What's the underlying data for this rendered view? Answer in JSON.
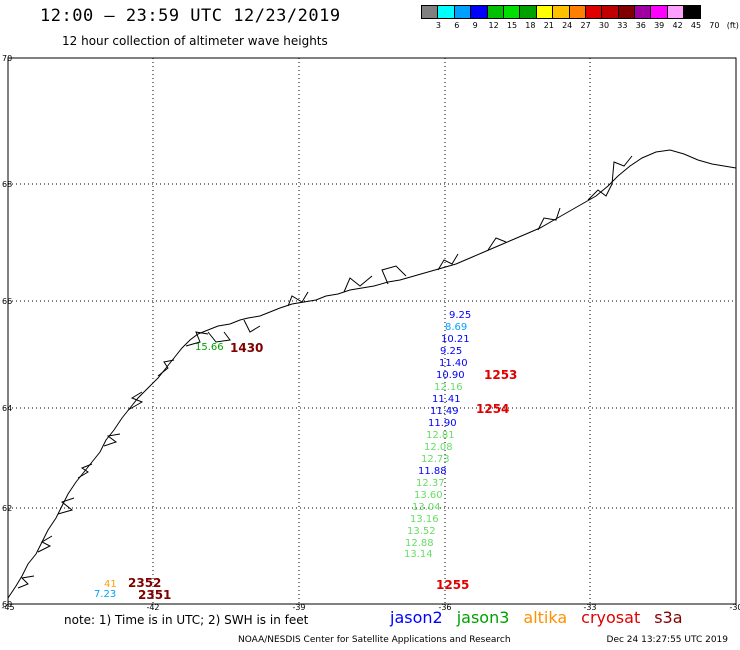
{
  "header": {
    "title": "12:00 – 23:59 UTC 12/23/2019",
    "subtitle": "12 hour collection of altimeter wave heights"
  },
  "colorbar": {
    "unit": "(ft)",
    "colors": [
      "#808080",
      "#00ffff",
      "#00a0ff",
      "#0000ff",
      "#00c000",
      "#00e000",
      "#00a000",
      "#ffff00",
      "#ffc000",
      "#ff8000",
      "#e00000",
      "#c00000",
      "#800000",
      "#a000a0",
      "#ff00ff",
      "#ffa0ff",
      "#000000"
    ],
    "labels": [
      "3",
      "6",
      "9",
      "12",
      "15",
      "18",
      "21",
      "24",
      "27",
      "30",
      "33",
      "36",
      "39",
      "42",
      "45",
      "70"
    ]
  },
  "map": {
    "lat_labels": [
      "70",
      "68",
      "66",
      "64",
      "62",
      "60"
    ],
    "lon_labels": [
      "-45",
      "-42",
      "-39",
      "-36",
      "-33",
      "-30"
    ]
  },
  "observations": {
    "time_labels": [
      {
        "text": "1253",
        "color": "#e00000"
      },
      {
        "text": "1254",
        "color": "#e00000"
      },
      {
        "text": "1255",
        "color": "#e00000"
      },
      {
        "text": "1430",
        "color": "#800000"
      },
      {
        "text": "2352",
        "color": "#800000"
      },
      {
        "text": "2351",
        "color": "#800000"
      }
    ],
    "track_values": [
      {
        "text": "9.25",
        "color": "#0000ff"
      },
      {
        "text": "8.69",
        "color": "#00a0ff"
      },
      {
        "text": "10.21",
        "color": "#0000ff"
      },
      {
        "text": "9.25",
        "color": "#0000ff"
      },
      {
        "text": "11.40",
        "color": "#0000ff"
      },
      {
        "text": "10.90",
        "color": "#0000ff"
      },
      {
        "text": "12.16",
        "color": "#66dd66"
      },
      {
        "text": "11.41",
        "color": "#0000ff"
      },
      {
        "text": "11.49",
        "color": "#0000ff"
      },
      {
        "text": "11.90",
        "color": "#0000ff"
      },
      {
        "text": "12.81",
        "color": "#66dd66"
      },
      {
        "text": "12.08",
        "color": "#66dd66"
      },
      {
        "text": "12.73",
        "color": "#66dd66"
      },
      {
        "text": "11.88",
        "color": "#0000ff"
      },
      {
        "text": "12.37",
        "color": "#66dd66"
      },
      {
        "text": "13.60",
        "color": "#66dd66"
      },
      {
        "text": "13.04",
        "color": "#66dd66"
      },
      {
        "text": "13.16",
        "color": "#66dd66"
      },
      {
        "text": "13.52",
        "color": "#66dd66"
      },
      {
        "text": "12.88",
        "color": "#66dd66"
      },
      {
        "text": "13.14",
        "color": "#66dd66"
      }
    ],
    "coast_values": [
      {
        "text": "15.66",
        "color": "#00a000"
      },
      {
        "text": "41",
        "color": "#ffa000"
      },
      {
        "text": "7.23",
        "color": "#00a0ff"
      }
    ]
  },
  "footer": {
    "note": "note:  1) Time is in UTC;  2) SWH is in feet",
    "satellites": [
      {
        "name": "jason2",
        "color": "#0000ff"
      },
      {
        "name": "jason3",
        "color": "#00a000"
      },
      {
        "name": "altika",
        "color": "#ff9000"
      },
      {
        "name": "cryosat",
        "color": "#e00000"
      },
      {
        "name": "s3a",
        "color": "#800000"
      }
    ],
    "credit": "NOAA/NESDIS Center for Satellite Applications and Research",
    "generated": "Dec 24 13:27:55 UTC 2019"
  }
}
